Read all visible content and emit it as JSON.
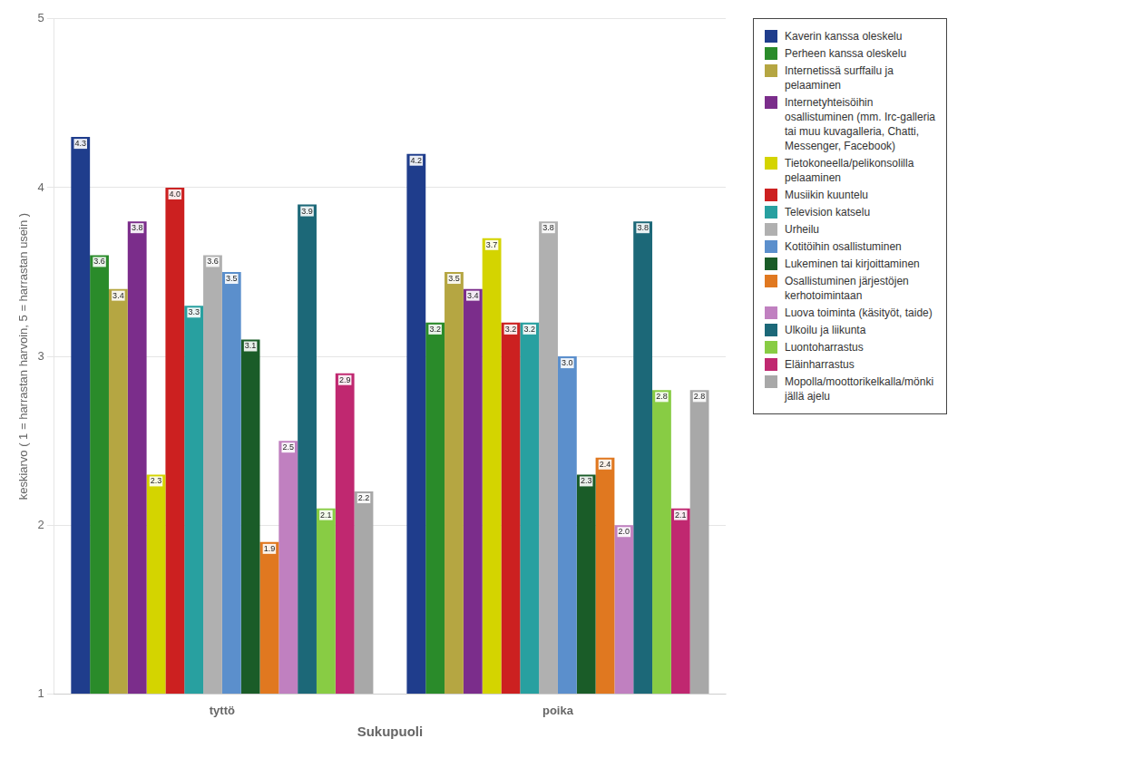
{
  "chart_data": {
    "type": "bar",
    "categories": [
      "tyttö",
      "poika"
    ],
    "series": [
      {
        "name": "Kaverin kanssa oleskelu",
        "color": "#1F3D8C",
        "values": [
          4.3,
          4.2
        ]
      },
      {
        "name": "Perheen kanssa oleskelu",
        "color": "#2A8B2A",
        "values": [
          3.6,
          3.2
        ]
      },
      {
        "name": "Internetissä surffailu ja\npelaaminen",
        "color": "#B5A642",
        "values": [
          3.4,
          3.5
        ]
      },
      {
        "name": "Internetyhteisöihin\nosallistuminen (mm. Irc-galleria\ntai muu kuvagalleria, Chatti,\nMessenger, Facebook)",
        "color": "#7B2D8B",
        "values": [
          3.8,
          3.4
        ]
      },
      {
        "name": "Tietokoneella/pelikonsolilla\npelaaminen",
        "color": "#D4D400",
        "values": [
          2.3,
          3.7
        ]
      },
      {
        "name": "Musiikin kuuntelu",
        "color": "#CC2020",
        "values": [
          4.0,
          3.2
        ],
        "value_labels": [
          "4.0",
          "3.2"
        ]
      },
      {
        "name": "Television katselu",
        "color": "#28A0A0",
        "values": [
          3.3,
          3.2
        ]
      },
      {
        "name": "Urheilu",
        "color": "#B0B0B0",
        "values": [
          3.6,
          3.8
        ]
      },
      {
        "name": "Kotitöihin osallistuminen",
        "color": "#5B8FCC",
        "values": [
          3.5,
          3.0
        ],
        "value_labels": [
          "3.5",
          "3.0"
        ]
      },
      {
        "name": "Lukeminen tai kirjoittaminen",
        "color": "#1A5C28",
        "values": [
          3.1,
          2.3
        ]
      },
      {
        "name": "Osallistuminen järjestöjen\nkerhotoimintaan",
        "color": "#E07820",
        "values": [
          1.9,
          2.4
        ]
      },
      {
        "name": "Luova toiminta (käsityöt, taide)",
        "color": "#C080C0",
        "values": [
          2.5,
          2.0
        ],
        "value_labels": [
          "2.5",
          "2.0"
        ]
      },
      {
        "name": "Ulkoilu ja liikunta",
        "color": "#1C6878",
        "values": [
          3.9,
          3.8
        ]
      },
      {
        "name": "Luontoharrastus",
        "color": "#88CC44",
        "values": [
          2.1,
          2.8
        ]
      },
      {
        "name": "Eläinharrastus",
        "color": "#C02870",
        "values": [
          2.9,
          2.1
        ]
      },
      {
        "name": "Mopolla/moottorikelkalla/mönki\njällä ajelu",
        "color": "#A8A8A8",
        "values": [
          2.2,
          2.8
        ]
      }
    ],
    "xlabel": "Sukupuoli",
    "ylabel": "keskiarvo ( 1 = harrastan harvoin, 5 = harrastan usein )",
    "ylim": [
      1,
      5
    ],
    "yticks": [
      1,
      2,
      3,
      4,
      5
    ],
    "grid": true,
    "legend": "right",
    "data_labels": true
  }
}
